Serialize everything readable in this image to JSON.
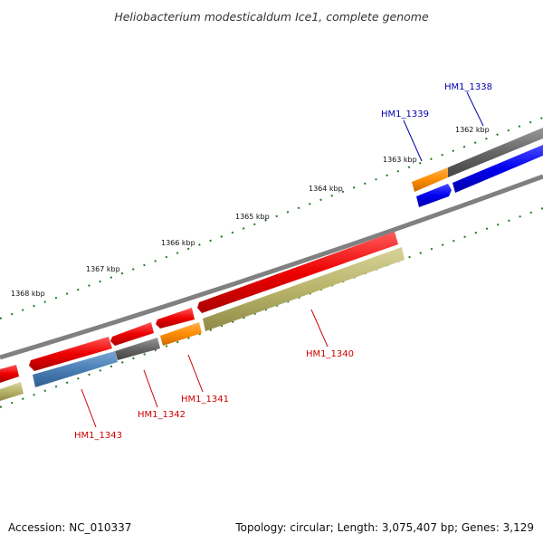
{
  "title": "Heliobacterium modesticaldum Ice1, complete genome",
  "accession": "Accession: NC_010337",
  "topology": "Topology: circular; Length: 3,075,407 bp; Genes: 3,129",
  "kbp_labels": [
    "1362 kbp",
    "1363 kbp",
    "1364 kbp",
    "1365 kbp",
    "1366 kbp",
    "1367 kbp",
    "1368 kbp"
  ],
  "genes": [
    {
      "label": "HM1_1338",
      "label_color": "#0000aa",
      "fill": "#0000ee"
    },
    {
      "label": "HM1_1339",
      "label_color": "#0000aa",
      "fill": "#ff8c00"
    },
    {
      "label": "HM1_1340",
      "label_color": "#cc0000",
      "fill": "#dd0000"
    },
    {
      "label": "HM1_1341",
      "label_color": "#cc0000",
      "fill": "#ff8c00"
    },
    {
      "label": "HM1_1342",
      "label_color": "#cc0000",
      "fill": "#666666"
    },
    {
      "label": "HM1_1343",
      "label_color": "#cc0000",
      "fill": "#4a7fb5"
    }
  ],
  "colors": {
    "backbone": "#808080",
    "red_feature": "#ee0000",
    "khaki_feature": "#b8b46a",
    "gray_feature": "#666666",
    "blue_feature": "#0000ee",
    "orange_feature": "#ff8c00",
    "steel_feature": "#4a7fb5",
    "tick": "#1f7a1f"
  }
}
